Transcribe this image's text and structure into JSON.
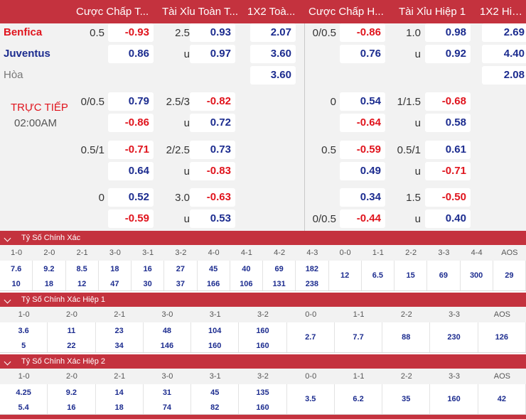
{
  "header": {
    "col1": "Cược Chấp T...",
    "col2": "Tài Xỉu Toàn T...",
    "col3": "1X2 Toà...",
    "col4": "Cược Chấp H...",
    "col5": "Tài Xỉu Hiệp 1",
    "col6": "1X2 Hiệ..."
  },
  "match": {
    "home": "Benfica",
    "away": "Juventus",
    "draw": "Hòa",
    "status": "TRỰC TIẾP",
    "time": "02:00AM"
  },
  "main_odds": {
    "ft_hcap_line": "0.5",
    "ft_hcap_home": "-0.93",
    "ft_hcap_away": "0.86",
    "ft_ou_line": "2.5",
    "ft_ou_over": "0.93",
    "ft_ou_u": "u",
    "ft_ou_under": "0.97",
    "ft_1x2_home": "2.07",
    "ft_1x2_away": "3.60",
    "ft_1x2_draw": "3.60",
    "h1_hcap_line": "0/0.5",
    "h1_hcap_home": "-0.86",
    "h1_hcap_away": "0.76",
    "h1_ou_line": "1.0",
    "h1_ou_over": "0.98",
    "h1_ou_u": "u",
    "h1_ou_under": "0.92",
    "h1_1x2_home": "2.69",
    "h1_1x2_away": "4.40",
    "h1_1x2_draw": "2.08"
  },
  "alt_odds": [
    {
      "ft_hcap_line": "0/0.5",
      "ft_hcap_top": "0.79",
      "ft_hcap_bot": "-0.86",
      "ft_ou_line": "2.5/3",
      "ft_ou_top": "-0.82",
      "ft_ou_u": "u",
      "ft_ou_bot": "0.72",
      "h1_hcap_line": "0",
      "h1_hcap_top": "0.54",
      "h1_hcap_bot": "-0.64",
      "h1_ou_line": "1/1.5",
      "h1_ou_top": "-0.68",
      "h1_ou_u": "u",
      "h1_ou_bot": "0.58"
    },
    {
      "ft_hcap_line": "0.5/1",
      "ft_hcap_top": "-0.71",
      "ft_hcap_bot": "0.64",
      "ft_ou_line": "2/2.5",
      "ft_ou_top": "0.73",
      "ft_ou_u": "u",
      "ft_ou_bot": "-0.83",
      "h1_hcap_line": "0.5",
      "h1_hcap_top": "-0.59",
      "h1_hcap_bot": "0.49",
      "h1_ou_line": "0.5/1",
      "h1_ou_top": "0.61",
      "h1_ou_u": "u",
      "h1_ou_bot": "-0.71"
    },
    {
      "ft_hcap_line": "0",
      "ft_hcap_top": "0.52",
      "ft_hcap_bot": "-0.59",
      "ft_ou_line": "3.0",
      "ft_ou_top": "-0.63",
      "ft_ou_u": "u",
      "ft_ou_bot": "0.53",
      "h1_hcap_line": "",
      "h1_hcap_top": "0.34",
      "h1_hcap_bot": "-0.44",
      "h1_hcap_line_bot": "0/0.5",
      "h1_ou_line": "1.5",
      "h1_ou_top": "-0.50",
      "h1_ou_u": "u",
      "h1_ou_bot": "0.40"
    }
  ],
  "correct_score": {
    "title": "Tỷ Số Chính Xác",
    "labels": [
      "1-0",
      "2-0",
      "2-1",
      "3-0",
      "3-1",
      "3-2",
      "4-0",
      "4-1",
      "4-2",
      "4-3",
      "0-0",
      "1-1",
      "2-2",
      "3-3",
      "4-4",
      "AOS"
    ],
    "top": [
      "7.6",
      "9.2",
      "8.5",
      "18",
      "16",
      "27",
      "45",
      "40",
      "69",
      "182",
      "12",
      "6.5",
      "15",
      "69",
      "300",
      "29"
    ],
    "bottom": [
      "10",
      "18",
      "12",
      "47",
      "30",
      "37",
      "166",
      "106",
      "131",
      "238"
    ]
  },
  "correct_score_h1": {
    "title": "Tỷ Số Chính Xác Hiệp 1",
    "labels": [
      "1-0",
      "2-0",
      "2-1",
      "3-0",
      "3-1",
      "3-2",
      "0-0",
      "1-1",
      "2-2",
      "3-3",
      "AOS"
    ],
    "top": [
      "3.6",
      "11",
      "23",
      "48",
      "104",
      "160",
      "2.7",
      "7.7",
      "88",
      "230",
      "126"
    ],
    "bottom": [
      "5",
      "22",
      "34",
      "146",
      "160",
      "160"
    ]
  },
  "correct_score_h2": {
    "title": "Tỷ Số Chính Xác Hiệp 2",
    "labels": [
      "1-0",
      "2-0",
      "2-1",
      "3-0",
      "3-1",
      "3-2",
      "0-0",
      "1-1",
      "2-2",
      "3-3",
      "AOS"
    ],
    "top": [
      "4.25",
      "9.2",
      "14",
      "31",
      "45",
      "135",
      "3.5",
      "6.2",
      "35",
      "160",
      "42"
    ],
    "bottom": [
      "5.4",
      "16",
      "18",
      "74",
      "82",
      "160"
    ]
  },
  "colors": {
    "header_red": "#c4323e",
    "positive_blue": "#1c2c8f",
    "negative_red": "#e0141d"
  }
}
